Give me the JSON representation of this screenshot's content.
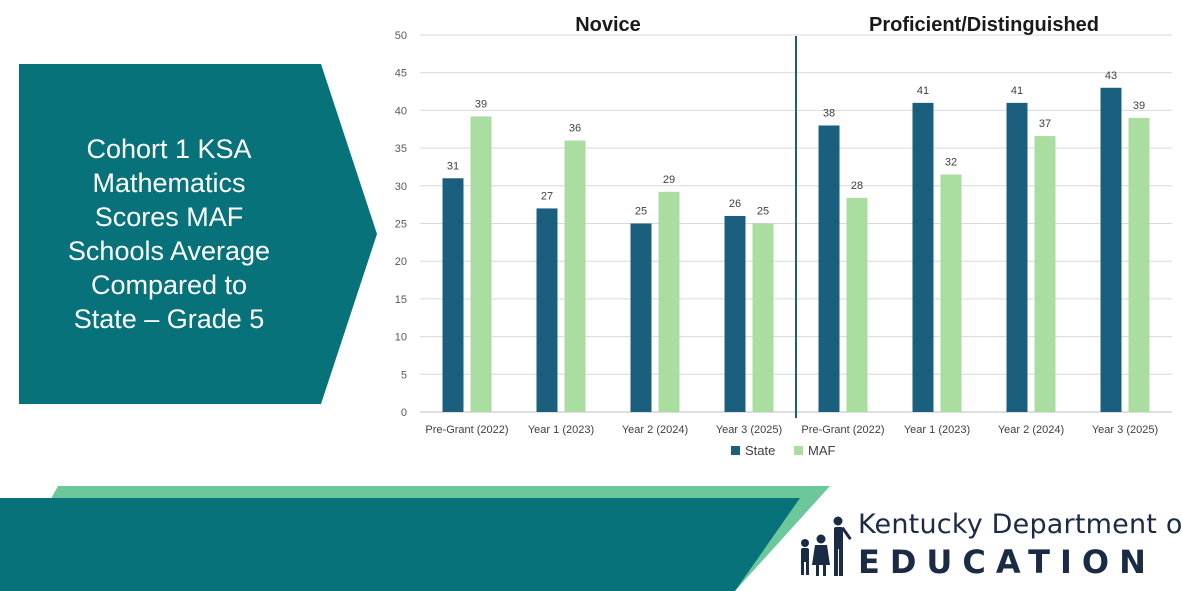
{
  "title": "Cohort 1  KSA\nMathematics\nScores MAF\nSchools Average\nCompared to\nState – Grade 5",
  "colors": {
    "banner": "#08727b",
    "state": "#1b5f7f",
    "maf": "#a9dea0",
    "divider": "#1b5f7f",
    "footer_dark": "#08727b",
    "footer_light": "#6cc79a",
    "logo_text": "#1b2a45"
  },
  "chart_data": {
    "type": "bar",
    "groups": [
      {
        "title": "Novice",
        "categories": [
          "Pre-Grant (2022)",
          "Year 1 (2023)",
          "Year 2 (2024)",
          "Year 3 (2025)"
        ],
        "series": [
          {
            "name": "State",
            "values": [
              31,
              27,
              25,
              26
            ],
            "labels": [
              "31",
              "27",
              "25",
              "26"
            ]
          },
          {
            "name": "MAF",
            "values": [
              39.2,
              36,
              29.2,
              25
            ],
            "labels": [
              "39",
              "36",
              "29",
              "25"
            ]
          }
        ]
      },
      {
        "title": "Proficient/Distinguished",
        "categories": [
          "Pre-Grant (2022)",
          "Year 1 (2023)",
          "Year 2 (2024)",
          "Year 3 (2025)"
        ],
        "series": [
          {
            "name": "State",
            "values": [
              38,
              41,
              41,
              43
            ],
            "labels": [
              "38",
              "41",
              "41",
              "43"
            ]
          },
          {
            "name": "MAF",
            "values": [
              28.4,
              31.5,
              36.6,
              39
            ],
            "labels": [
              "28",
              "32",
              "37",
              "39"
            ]
          }
        ]
      }
    ],
    "ylim": [
      0,
      50
    ],
    "yticks": [
      0,
      5,
      10,
      15,
      20,
      25,
      30,
      35,
      40,
      45,
      50
    ],
    "grid": true,
    "legend": [
      "State",
      "MAF"
    ],
    "legend_position": "bottom"
  },
  "logo": {
    "line1": "Kentucky Department of",
    "line2": "EDUCATION"
  }
}
